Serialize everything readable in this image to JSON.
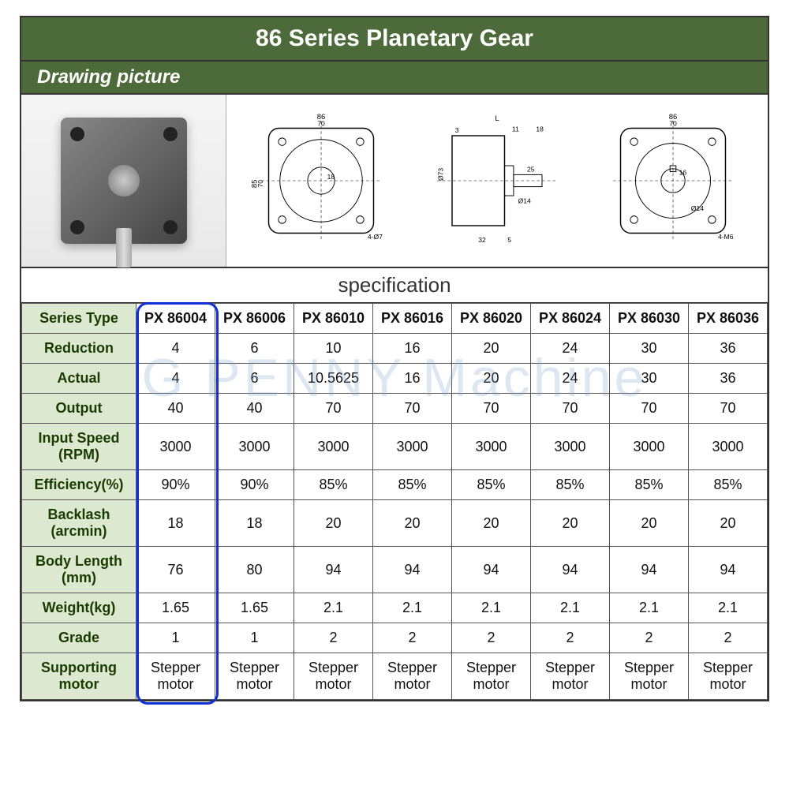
{
  "title": "86 Series Planetary Gear",
  "subtitle": "Drawing picture",
  "spec_heading": "specification",
  "watermark": "G PENNY Machine",
  "highlight_column_index": 0,
  "columns": [
    "PX 86004",
    "PX 86006",
    "PX 86010",
    "PX 86016",
    "PX 86020",
    "PX 86024",
    "PX 86030",
    "PX 86036"
  ],
  "rows": [
    {
      "label": "Series Type",
      "values": [
        "PX 86004",
        "PX 86006",
        "PX 86010",
        "PX 86016",
        "PX 86020",
        "PX 86024",
        "PX 86030",
        "PX 86036"
      ]
    },
    {
      "label": "Reduction",
      "values": [
        "4",
        "6",
        "10",
        "16",
        "20",
        "24",
        "30",
        "36"
      ]
    },
    {
      "label": "Actual",
      "values": [
        "4",
        "6",
        "10.5625",
        "16",
        "20",
        "24",
        "30",
        "36"
      ]
    },
    {
      "label": "Output",
      "values": [
        "40",
        "40",
        "70",
        "70",
        "70",
        "70",
        "70",
        "70"
      ]
    },
    {
      "label": "Input Speed (RPM)",
      "values": [
        "3000",
        "3000",
        "3000",
        "3000",
        "3000",
        "3000",
        "3000",
        "3000"
      ]
    },
    {
      "label": "Efficiency(%)",
      "values": [
        "90%",
        "90%",
        "85%",
        "85%",
        "85%",
        "85%",
        "85%",
        "85%"
      ]
    },
    {
      "label": "Backlash (arcmin)",
      "values": [
        "18",
        "18",
        "20",
        "20",
        "20",
        "20",
        "20",
        "20"
      ]
    },
    {
      "label": "Body Length (mm)",
      "values": [
        "76",
        "80",
        "94",
        "94",
        "94",
        "94",
        "94",
        "94"
      ]
    },
    {
      "label": "Weight(kg)",
      "values": [
        "1.65",
        "1.65",
        "2.1",
        "2.1",
        "2.1",
        "2.1",
        "2.1",
        "2.1"
      ]
    },
    {
      "label": "Grade",
      "values": [
        "1",
        "1",
        "2",
        "2",
        "2",
        "2",
        "2",
        "2"
      ]
    },
    {
      "label": "Supporting motor",
      "values": [
        "Stepper motor",
        "Stepper motor",
        "Stepper motor",
        "Stepper motor",
        "Stepper motor",
        "Stepper motor",
        "Stepper motor",
        "Stepper motor"
      ]
    }
  ],
  "colors": {
    "header_bg": "#4d6b3a",
    "row_header_bg": "#dce8d0",
    "highlight_border": "#1030d8",
    "border": "#555555",
    "text": "#111111"
  },
  "drawing_dims": {
    "outer": "86",
    "bolt_circle": "70",
    "face_width": "85",
    "shaft_len": "25",
    "shaft_dia": "Ø14",
    "pilot_dia": "Ø73",
    "bolt": "4-Ø7",
    "thread": "4-M6",
    "key": "16",
    "slot": "32",
    "top_L": "L",
    "side_18": "18",
    "side_11": "11",
    "side_5": "5",
    "side_3": "3"
  }
}
